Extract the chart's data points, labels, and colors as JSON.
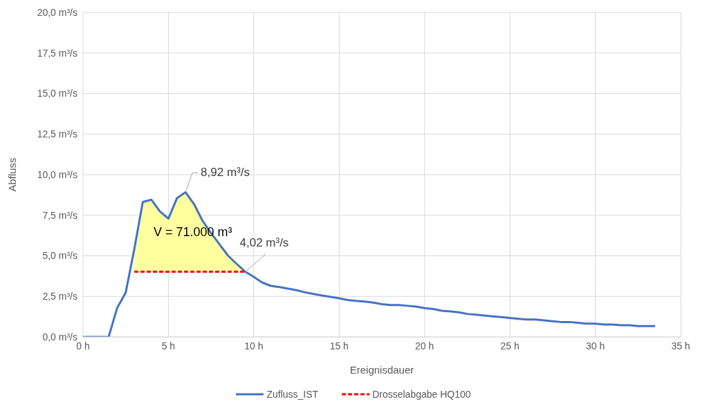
{
  "chart_data": {
    "type": "line",
    "xlabel": "Ereignisdauer",
    "ylabel": "Abfluss",
    "xlim": [
      0,
      35
    ],
    "xticks": [
      {
        "value": 0,
        "label": "0 h"
      },
      {
        "value": 5,
        "label": "5 h"
      },
      {
        "value": 10,
        "label": "10 h"
      },
      {
        "value": 15,
        "label": "15 h"
      },
      {
        "value": 20,
        "label": "20 h"
      },
      {
        "value": 25,
        "label": "25 h"
      },
      {
        "value": 30,
        "label": "30 h"
      },
      {
        "value": 35,
        "label": "35 h"
      }
    ],
    "ylim": [
      0,
      20
    ],
    "yticks": [
      {
        "value": 0,
        "label": "0,0 m³/s"
      },
      {
        "value": 2.5,
        "label": "2,5 m³/s"
      },
      {
        "value": 5,
        "label": "5,0 m³/s"
      },
      {
        "value": 7.5,
        "label": "7,5 m³/s"
      },
      {
        "value": 10,
        "label": "10,0 m³/s"
      },
      {
        "value": 12.5,
        "label": "12,5 m³/s"
      },
      {
        "value": 15,
        "label": "15,0 m³/s"
      },
      {
        "value": 17.5,
        "label": "17,5 m³/s"
      },
      {
        "value": 20,
        "label": "20,0 m³/s"
      }
    ],
    "grid": true,
    "legend": "bottom",
    "marker": "none",
    "series": [
      {
        "name": "Zufluss_IST",
        "color": "#4472c4",
        "line_style": "solid",
        "lower": [
          null,
          null,
          null,
          null,
          null,
          null,
          4.02,
          4.02,
          4.02,
          4.02,
          4.02,
          4.02,
          4.02,
          4.02,
          4.02,
          4.02,
          4.02,
          4.02,
          4.02,
          4.02,
          null,
          null,
          null,
          null,
          null,
          null,
          null,
          null,
          null,
          null,
          null,
          null,
          null,
          null,
          null,
          null,
          null,
          null,
          null,
          null,
          null,
          null,
          null,
          null,
          null,
          null,
          null,
          null,
          null,
          null,
          null,
          null,
          null,
          null,
          null,
          null,
          null,
          null,
          null,
          null,
          null,
          null,
          null,
          null,
          null,
          null,
          null,
          null
        ],
        "upper": [
          null,
          null,
          null,
          null,
          null,
          null,
          5.4,
          8.32,
          8.46,
          7.74,
          7.29,
          8.55,
          8.92,
          8.19,
          7.16,
          6.4,
          5.7,
          5.0,
          4.5,
          4.02,
          null,
          null,
          null,
          null,
          null,
          null,
          null,
          null,
          null,
          null,
          null,
          null,
          null,
          null,
          null,
          null,
          null,
          null,
          null,
          null,
          null,
          null,
          null,
          null,
          null,
          null,
          null,
          null,
          null,
          null,
          null,
          null,
          null,
          null,
          null,
          null,
          null,
          null,
          null,
          null,
          null,
          null,
          null,
          null,
          null,
          null,
          null,
          null
        ],
        "x": [
          0,
          0.5,
          1,
          1.5,
          2,
          2.5,
          3,
          3.5,
          4,
          4.5,
          5,
          5.5,
          6,
          6.5,
          7,
          7.5,
          8,
          8.5,
          9,
          9.5,
          10,
          10.5,
          11,
          11.5,
          12,
          12.5,
          13,
          13.5,
          14,
          14.5,
          15,
          15.5,
          16,
          16.5,
          17,
          17.5,
          18,
          18.5,
          19,
          19.5,
          20,
          20.5,
          21,
          21.5,
          22,
          22.5,
          23,
          23.5,
          24,
          24.5,
          25,
          25.5,
          26,
          26.5,
          27,
          27.5,
          28,
          28.5,
          29,
          29.5,
          30,
          30.5,
          31,
          31.5,
          32,
          32.5,
          33,
          33.5
        ],
        "values": [
          0,
          0,
          0,
          0,
          1.79,
          2.73,
          5.4,
          8.32,
          8.46,
          7.74,
          7.29,
          8.55,
          8.92,
          8.19,
          7.16,
          6.4,
          5.7,
          5.0,
          4.5,
          4.02,
          3.7,
          3.35,
          3.15,
          3.07,
          2.98,
          2.88,
          2.75,
          2.65,
          2.55,
          2.47,
          2.38,
          2.28,
          2.22,
          2.18,
          2.12,
          2.02,
          1.97,
          1.97,
          1.92,
          1.87,
          1.78,
          1.72,
          1.62,
          1.57,
          1.52,
          1.42,
          1.37,
          1.32,
          1.27,
          1.22,
          1.17,
          1.12,
          1.07,
          1.07,
          1.02,
          0.97,
          0.92,
          0.92,
          0.87,
          0.82,
          0.82,
          0.77,
          0.77,
          0.72,
          0.72,
          0.67,
          0.67,
          0.67
        ]
      },
      {
        "name": "Drosselabgabe HQ100",
        "color": "#ff0000",
        "line_style": "dashed",
        "x": [
          3,
          9.5
        ],
        "values": [
          4.02,
          4.02
        ]
      }
    ],
    "annotations": [
      {
        "text": "8,92 m³/s",
        "x": 6,
        "y": 8.92
      },
      {
        "text": "4,02 m³/s",
        "x": 9.5,
        "y": 4.02
      },
      "V = 71.000 m³"
    ]
  }
}
